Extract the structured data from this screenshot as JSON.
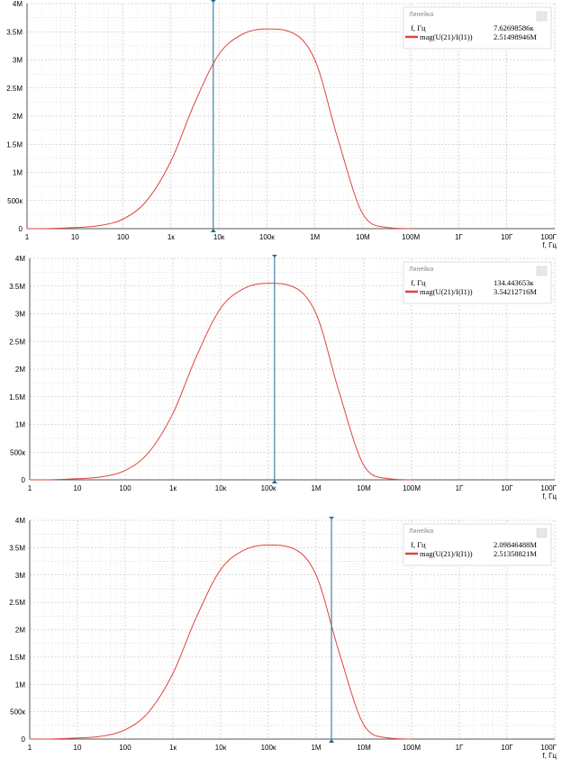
{
  "chart_data": [
    {
      "type": "line",
      "x_scale": "log",
      "xlim": [
        1,
        100000000000.0
      ],
      "ylim": [
        0,
        4000000.0
      ],
      "x_ticks": [
        "1",
        "10",
        "100",
        "1к",
        "10к",
        "100к",
        "1М",
        "10М",
        "100М",
        "1Г",
        "10Г",
        "100Г"
      ],
      "y_ticks": [
        "0",
        "500к",
        "1М",
        "1.5М",
        "2М",
        "2.5М",
        "3М",
        "3.5М",
        "4М"
      ],
      "xlabel": "f, Гц",
      "grid": true,
      "series": [
        {
          "name": "mag(U(21)/I(I1))",
          "color": "#e0433f",
          "x": [
            1,
            3,
            10,
            30,
            100,
            300,
            1000,
            3000,
            10000,
            30000,
            100000,
            300000,
            1000000,
            3000000,
            10000000,
            30000000,
            100000000
          ],
          "y": [
            0,
            3000,
            20000,
            50000,
            170000,
            480000,
            1200000,
            2200000,
            3100000,
            3450000,
            3550000,
            3500000,
            3000000,
            1600000,
            260000,
            25000,
            0
          ]
        }
      ],
      "legend": {
        "title": "Линейка",
        "x_label": "f, Гц",
        "x_value": "7.62698586к",
        "series_label": "mag(U(21)/I(I1))",
        "series_value": "2.51498946M",
        "position": "top-right"
      },
      "cursor_x": 7626.98586
    },
    {
      "type": "line",
      "x_scale": "log",
      "xlim": [
        1,
        100000000000.0
      ],
      "ylim": [
        0,
        4000000.0
      ],
      "x_ticks": [
        "1",
        "10",
        "100",
        "1к",
        "10к",
        "100к",
        "1М",
        "10М",
        "100М",
        "1Г",
        "10Г",
        "100Г"
      ],
      "y_ticks": [
        "0",
        "500к",
        "1М",
        "1.5М",
        "2М",
        "2.5М",
        "3М",
        "3.5М",
        "4М"
      ],
      "xlabel": "f, Гц",
      "grid": true,
      "series": [
        {
          "name": "mag(U(21)/I(I1))",
          "color": "#e0433f",
          "x": [
            1,
            3,
            10,
            30,
            100,
            300,
            1000,
            3000,
            10000,
            30000,
            100000,
            300000,
            1000000,
            3000000,
            10000000,
            30000000,
            100000000
          ],
          "y": [
            0,
            3000,
            20000,
            50000,
            170000,
            480000,
            1200000,
            2200000,
            3100000,
            3450000,
            3550000,
            3500000,
            3000000,
            1600000,
            260000,
            25000,
            0
          ]
        }
      ],
      "legend": {
        "title": "Линейка",
        "x_label": "f, Гц",
        "x_value": "134.443653к",
        "series_label": "mag(U(21)/I(I1))",
        "series_value": "3.54212716M",
        "position": "top-right"
      },
      "cursor_x": 134443.653
    },
    {
      "type": "line",
      "x_scale": "log",
      "xlim": [
        1,
        100000000000.0
      ],
      "ylim": [
        0,
        4000000.0
      ],
      "x_ticks": [
        "1",
        "10",
        "100",
        "1к",
        "10к",
        "100к",
        "1М",
        "10М",
        "100М",
        "1Г",
        "10Г",
        "100Г"
      ],
      "y_ticks": [
        "0",
        "500к",
        "1М",
        "1.5М",
        "2М",
        "2.5М",
        "3М",
        "3.5М",
        "4М"
      ],
      "xlabel": "f, Гц",
      "grid": true,
      "series": [
        {
          "name": "mag(U(21)/I(I1))",
          "color": "#e0433f",
          "x": [
            1,
            3,
            10,
            30,
            100,
            300,
            1000,
            3000,
            10000,
            30000,
            100000,
            300000,
            1000000,
            3000000,
            10000000,
            30000000,
            100000000
          ],
          "y": [
            0,
            3000,
            20000,
            50000,
            170000,
            480000,
            1200000,
            2200000,
            3100000,
            3450000,
            3550000,
            3500000,
            3000000,
            1600000,
            260000,
            25000,
            0
          ]
        }
      ],
      "legend": {
        "title": "Линейка",
        "x_label": "f, Гц",
        "x_value": "2.09846488M",
        "series_label": "mag(U(21)/I(I1))",
        "series_value": "2.51358821M",
        "position": "top-right"
      },
      "cursor_x": 2098464.88
    }
  ]
}
